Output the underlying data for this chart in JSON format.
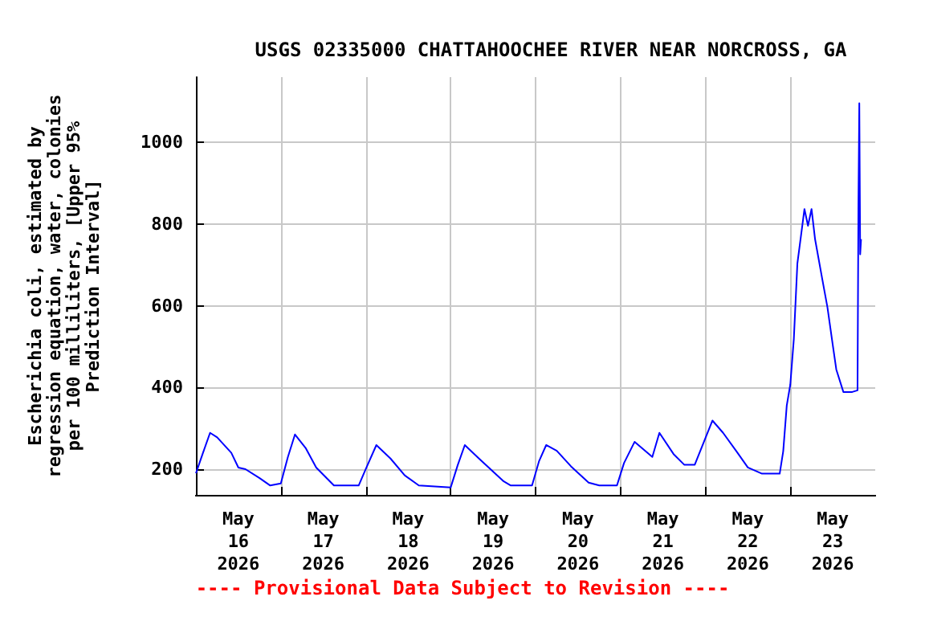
{
  "chart_data": {
    "type": "line",
    "title": "USGS 02335000 CHATTAHOOCHEE RIVER NEAR NORCROSS, GA",
    "ylabel": "Escherichia coli, estimated by\nregression equation, water, colonies\nper 100 milliliters, [Upper 95%\nPrediction Interval]",
    "annotations": [
      "---- Provisional Data Subject to Revision ----"
    ],
    "x": [
      "2026-05-16T00:00",
      "2026-05-16T02:00",
      "2026-05-16T04:00",
      "2026-05-16T06:00",
      "2026-05-16T10:00",
      "2026-05-16T12:00",
      "2026-05-16T14:00",
      "2026-05-16T18:00",
      "2026-05-16T21:00",
      "2026-05-17T00:00",
      "2026-05-17T02:00",
      "2026-05-17T04:00",
      "2026-05-17T07:00",
      "2026-05-17T10:00",
      "2026-05-17T15:00",
      "2026-05-17T22:00",
      "2026-05-18T00:00",
      "2026-05-18T03:00",
      "2026-05-18T07:00",
      "2026-05-18T11:00",
      "2026-05-18T15:00",
      "2026-05-19T00:00",
      "2026-05-19T02:00",
      "2026-05-19T04:00",
      "2026-05-19T08:00",
      "2026-05-19T15:00",
      "2026-05-19T17:00",
      "2026-05-19T23:00",
      "2026-05-20T01:00",
      "2026-05-20T03:00",
      "2026-05-20T06:00",
      "2026-05-20T10:00",
      "2026-05-20T15:00",
      "2026-05-20T18:00",
      "2026-05-20T23:00",
      "2026-05-21T01:00",
      "2026-05-21T04:00",
      "2026-05-21T09:00",
      "2026-05-21T11:00",
      "2026-05-21T15:00",
      "2026-05-21T18:00",
      "2026-05-21T21:00",
      "2026-05-22T02:00",
      "2026-05-22T05:00",
      "2026-05-22T09:00",
      "2026-05-22T12:00",
      "2026-05-22T16:00",
      "2026-05-22T21:00",
      "2026-05-22T22:00",
      "2026-05-22T23:00",
      "2026-05-23T00:00",
      "2026-05-23T01:00",
      "2026-05-23T02:00",
      "2026-05-23T03:00",
      "2026-05-23T04:00",
      "2026-05-23T05:00",
      "2026-05-23T06:00",
      "2026-05-23T07:00",
      "2026-05-23T09:00",
      "2026-05-23T10:30",
      "2026-05-23T12:00",
      "2026-05-23T13:00",
      "2026-05-23T15:00",
      "2026-05-23T17:30",
      "2026-05-23T19:00",
      "2026-05-23T19:15",
      "2026-05-23T19:30",
      "2026-05-23T19:45",
      "2026-05-23T20:00"
    ],
    "series": [
      {
        "color": "#0000ff",
        "values": [
          190,
          240,
          289,
          278,
          240,
          204,
          200,
          178,
          160,
          165,
          230,
          285,
          252,
          204,
          160,
          160,
          200,
          259,
          226,
          185,
          160,
          155,
          210,
          259,
          226,
          170,
          160,
          160,
          220,
          259,
          245,
          207,
          167,
          160,
          160,
          215,
          267,
          230,
          289,
          237,
          211,
          211,
          319,
          289,
          241,
          204,
          189,
          189,
          244,
          356,
          407,
          519,
          704,
          770,
          837,
          796,
          837,
          763,
          667,
          596,
          504,
          444,
          389,
          389,
          393,
          837,
          1096,
          726,
          763
        ]
      }
    ],
    "xlim": [
      "2026-05-16T00:00",
      "2026-05-24T00:00"
    ],
    "xticks": [
      {
        "value": "2026-05-16T12:00",
        "label": "May\n16\n2026"
      },
      {
        "value": "2026-05-17T00:00",
        "label": null
      },
      {
        "value": "2026-05-17T12:00",
        "label": "May\n17\n2026"
      },
      {
        "value": "2026-05-18T00:00",
        "label": null
      },
      {
        "value": "2026-05-18T12:00",
        "label": "May\n18\n2026"
      },
      {
        "value": "2026-05-19T00:00",
        "label": null
      },
      {
        "value": "2026-05-19T12:00",
        "label": "May\n19\n2026"
      },
      {
        "value": "2026-05-20T00:00",
        "label": null
      },
      {
        "value": "2026-05-20T12:00",
        "label": "May\n20\n2026"
      },
      {
        "value": "2026-05-21T00:00",
        "label": null
      },
      {
        "value": "2026-05-21T12:00",
        "label": "May\n21\n2026"
      },
      {
        "value": "2026-05-22T00:00",
        "label": null
      },
      {
        "value": "2026-05-22T12:00",
        "label": "May\n22\n2026"
      },
      {
        "value": "2026-05-23T00:00",
        "label": null
      },
      {
        "value": "2026-05-23T12:00",
        "label": "May\n23\n2026"
      }
    ],
    "ylim": [
      137,
      1160
    ],
    "yticks": [
      200,
      400,
      600,
      800,
      1000
    ],
    "grid": true,
    "marker": "none",
    "line_style": "solid"
  }
}
